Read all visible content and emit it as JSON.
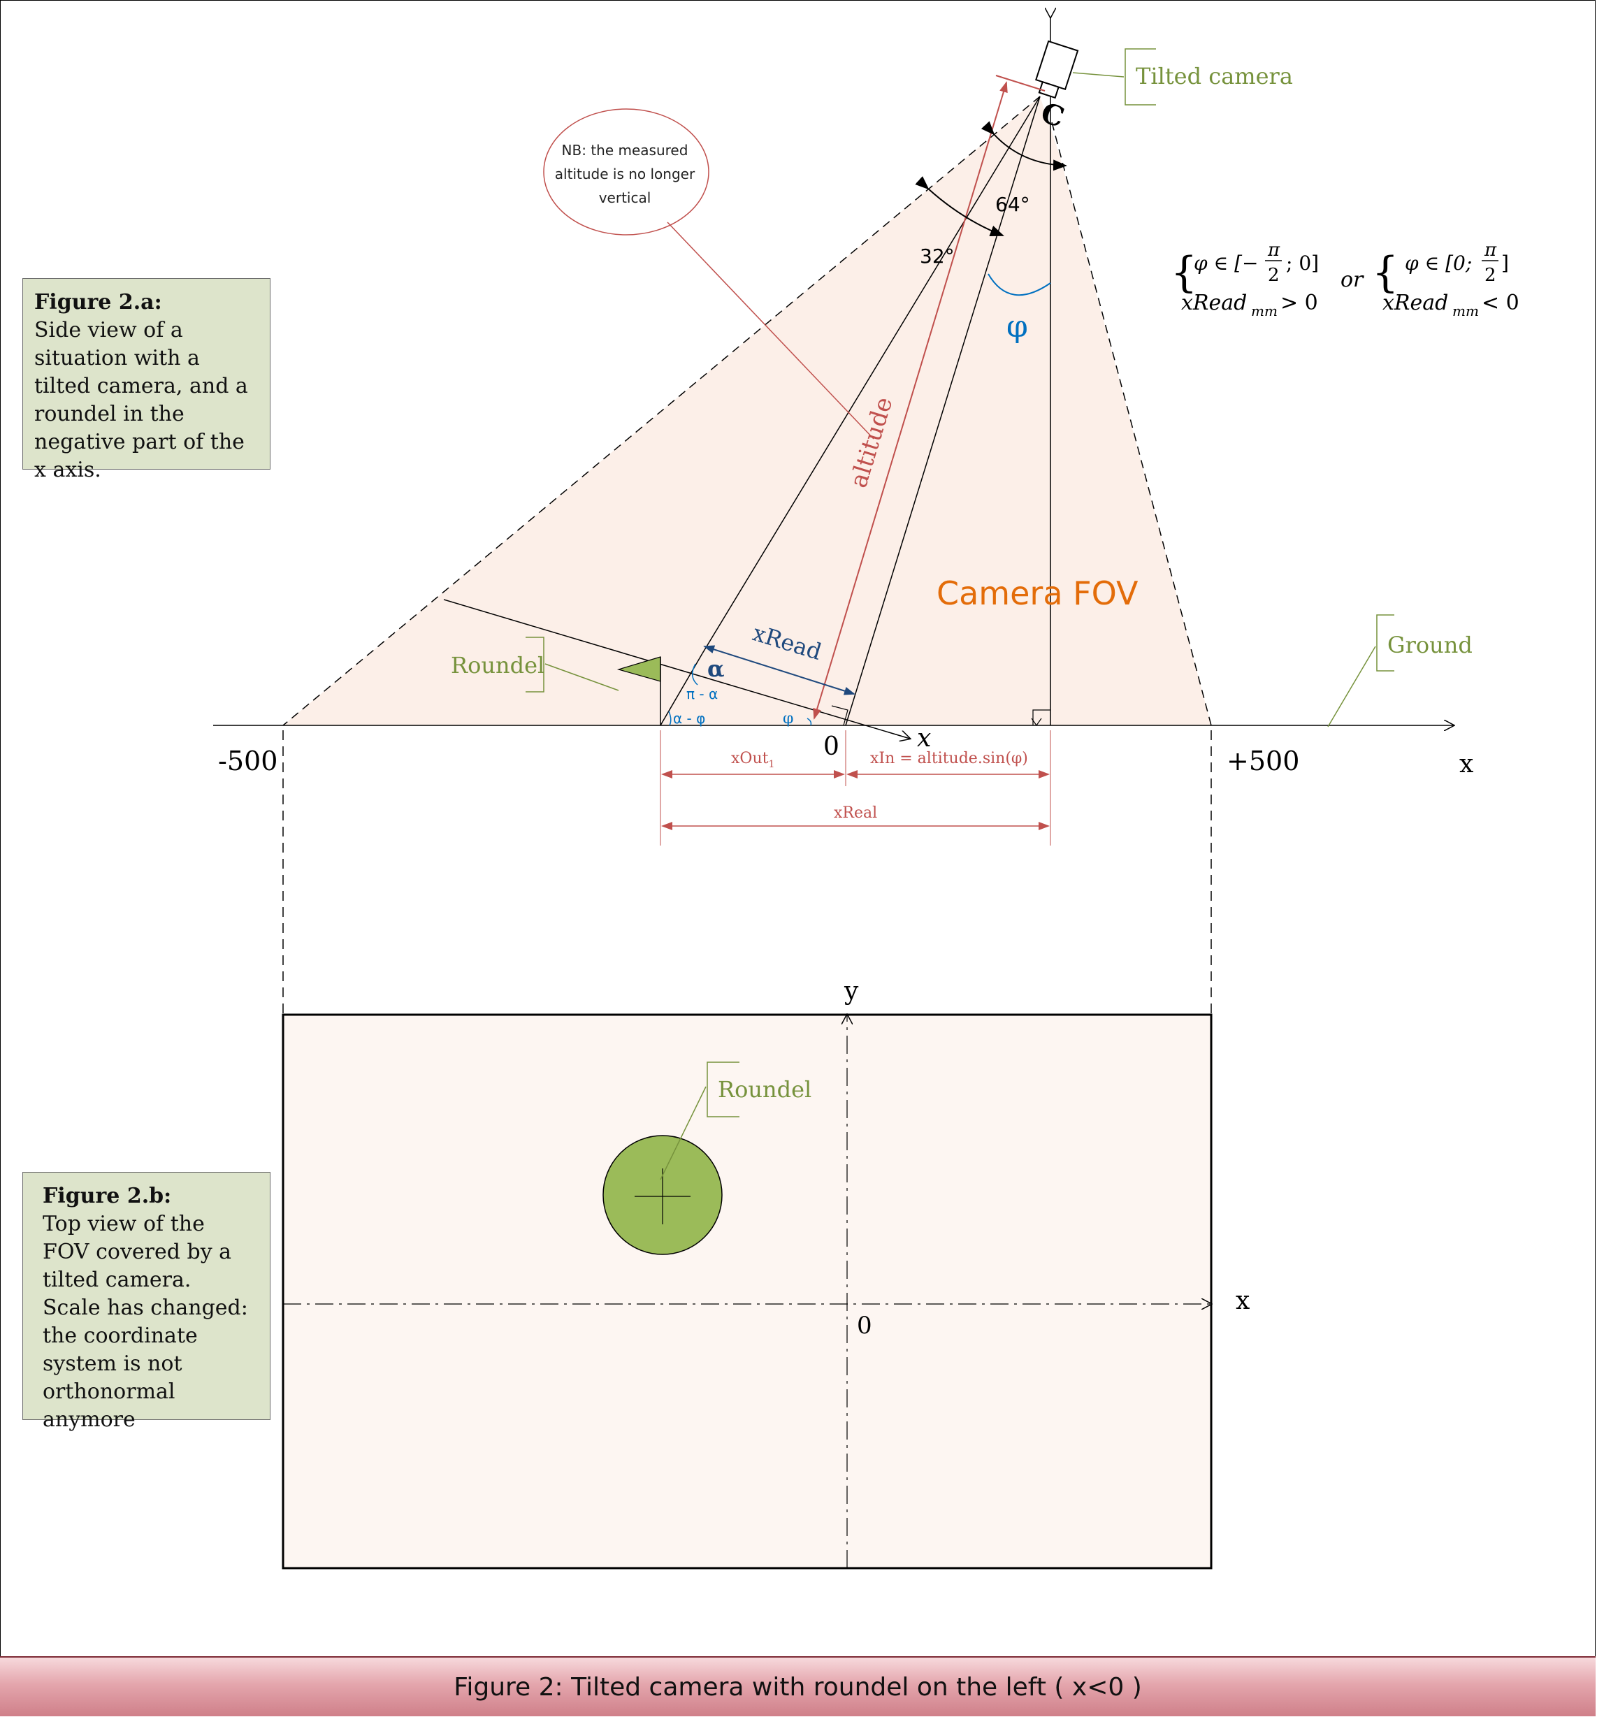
{
  "figure_a": {
    "title": "Figure 2.a:",
    "body": "Side view of a situation with a tilted camera, and a roundel in the negative part of the x axis."
  },
  "figure_b": {
    "title": "Figure 2.b:",
    "body": "Top view of the FOV covered by a tilted camera. Scale has changed: the coordinate system is not orthonormal anymore"
  },
  "note": "NB: the measured altitude is no longer vertical",
  "labels": {
    "tilted_camera": "Tilted camera",
    "camera_point": "C",
    "angle_64": "64°",
    "angle_32": "32°",
    "phi": "φ",
    "altitude": "altitude",
    "camera_fov": "Camera FOV",
    "ground": "Ground",
    "roundel": "Roundel",
    "roundel_top": "Roundel",
    "xread": "xRead",
    "alpha": "α",
    "pi_minus_alpha": "π - α",
    "alpha_minus_phi": "α - φ",
    "phi_small": "φ",
    "x_tilted": "x",
    "zero_side": "0",
    "minus_500": "-500",
    "plus_500": "+500",
    "x_axis": "x",
    "xout": "xOut",
    "xout_sub": "1",
    "xin": "xIn = altitude.sin(φ)",
    "xreal": "xReal",
    "y_top": "y",
    "x_top": "x",
    "zero_top": "0"
  },
  "condition": {
    "left_line1": "φ ∈ [−π/2 ; 0]",
    "left_line2": "xRead",
    "left_sub": "mm",
    "left_rel": " > 0",
    "or": "or",
    "right_line1": "φ ∈ [0; π/2]",
    "right_line2": "xRead",
    "right_sub": "mm",
    "right_rel": " < 0"
  },
  "footer": "Figure 2: Tilted camera with roundel on the left ( x<0 )",
  "colors": {
    "fov_fill": "#fcefe8",
    "roundel_green": "#9bbb59",
    "label_green": "#76923c",
    "altitude_red": "#c0504d",
    "xread_blue": "#1f497d",
    "phi_blue": "#0070c0",
    "fov_orange": "#e36c09",
    "caption_bg": "#dde4cb"
  }
}
